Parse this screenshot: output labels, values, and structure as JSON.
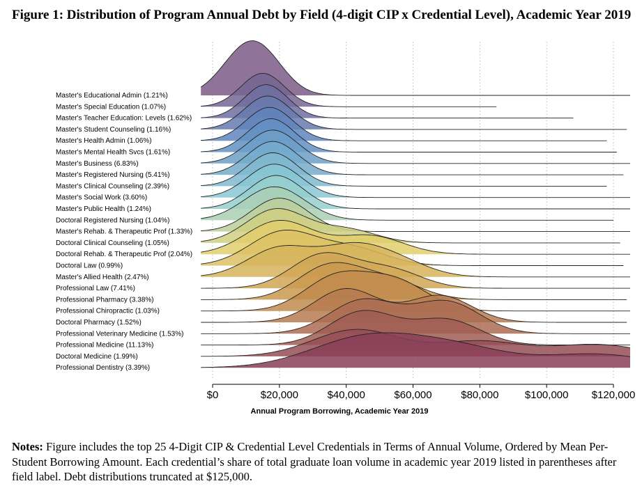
{
  "figure": {
    "title": "Figure 1: Distribution of Program Annual Debt by Field (4-digit CIP x Credential Level), Academic Year 2019",
    "notes_label": "Notes:",
    "notes_text": "Figure includes the top 25 4-Digit CIP & Credential Level Credentials in Terms of Annual Volume, Ordered by Mean Per-Student Borrowing Amount. Each credential’s share of total graduate loan volume in academic year 2019 listed in parentheses after field label. Debt distributions truncated at $125,000."
  },
  "chart_data": {
    "type": "area",
    "subtype": "ridgeline density",
    "xlabel": "Annual Program Borrowing, Academic Year 2019",
    "xlim": [
      0,
      125000
    ],
    "x_ticks": [
      0,
      20000,
      40000,
      60000,
      80000,
      100000,
      120000
    ],
    "x_tick_labels": [
      "$0",
      "$20,000",
      "$40,000",
      "$60,000",
      "$80,000",
      "$100,000",
      "$120,000"
    ],
    "grid": "vertical dotted lines at x ticks",
    "colors": {
      "top": "#7d5a86",
      "mid_blue": "#5d88c0",
      "mid_teal": "#8fcfd6",
      "mid_yellow": "#e2cf6c",
      "mid_orange": "#c9964d",
      "bottom": "#8a3f58"
    },
    "series": [
      {
        "name": "Master's Educational Admin (1.21%)",
        "peaks": [
          [
            15000,
            1.0
          ],
          [
            8000,
            0.85
          ]
        ],
        "sd": 7000,
        "max_x": 125000
      },
      {
        "name": "Master's Special Education (1.07%)",
        "peaks": [
          [
            15000,
            1.0
          ]
        ],
        "sd": 6500,
        "max_x": 85000
      },
      {
        "name": "Master's Teacher Education: Levels (1.62%)",
        "peaks": [
          [
            16000,
            1.0
          ]
        ],
        "sd": 6500,
        "max_x": 108000
      },
      {
        "name": "Master's Student Counseling (1.16%)",
        "peaks": [
          [
            16500,
            1.0
          ]
        ],
        "sd": 7000,
        "max_x": 124000
      },
      {
        "name": "Master's Health Admin (1.06%)",
        "peaks": [
          [
            17000,
            1.0
          ]
        ],
        "sd": 7000,
        "max_x": 118000
      },
      {
        "name": "Master's Mental Health Svcs (1.61%)",
        "peaks": [
          [
            17500,
            1.0
          ]
        ],
        "sd": 7000,
        "max_x": 121000
      },
      {
        "name": "Master's Business (6.83%)",
        "peaks": [
          [
            18000,
            1.0
          ]
        ],
        "sd": 7500,
        "max_x": 125000
      },
      {
        "name": "Master's Registered Nursing (5.41%)",
        "peaks": [
          [
            18000,
            1.0
          ]
        ],
        "sd": 7500,
        "max_x": 123000
      },
      {
        "name": "Master's Clinical Counseling (2.39%)",
        "peaks": [
          [
            18000,
            1.0
          ]
        ],
        "sd": 7500,
        "max_x": 118000
      },
      {
        "name": "Master's Social Work (3.60%)",
        "peaks": [
          [
            18500,
            1.0
          ]
        ],
        "sd": 8000,
        "max_x": 125000
      },
      {
        "name": "Master's Public Health (1.24%)",
        "peaks": [
          [
            19000,
            1.0
          ]
        ],
        "sd": 8000,
        "max_x": 125000
      },
      {
        "name": "Doctoral Registered Nursing (1.04%)",
        "peaks": [
          [
            18500,
            1.0
          ]
        ],
        "sd": 9000,
        "max_x": 120000
      },
      {
        "name": "Master's Rehab. & Therapeutic Prof (1.33%)",
        "peaks": [
          [
            20000,
            1.0
          ]
        ],
        "sd": 8500,
        "max_x": 125000
      },
      {
        "name": "Doctoral Clinical Counseling (1.05%)",
        "peaks": [
          [
            19000,
            1.0
          ],
          [
            40000,
            0.4
          ]
        ],
        "sd": 9000,
        "max_x": 122000
      },
      {
        "name": "Doctoral Rehab. & Therapeutic Prof (2.04%)",
        "peaks": [
          [
            20000,
            1.0
          ],
          [
            47000,
            0.55
          ]
        ],
        "sd": 10000,
        "max_x": 125000
      },
      {
        "name": "Doctoral Law (0.99%)",
        "peaks": [
          [
            21000,
            1.0
          ],
          [
            42000,
            0.5
          ]
        ],
        "sd": 10000,
        "max_x": 123000
      },
      {
        "name": "Master's Allied Health (2.47%)",
        "peaks": [
          [
            20000,
            0.85
          ],
          [
            41000,
            0.8
          ],
          [
            55000,
            0.45
          ]
        ],
        "sd": 9500,
        "max_x": 125000
      },
      {
        "name": "Professional Law (7.41%)",
        "peaks": [
          [
            33000,
            1.0
          ],
          [
            53000,
            0.55
          ]
        ],
        "sd": 9500,
        "max_x": 125000
      },
      {
        "name": "Professional Pharmacy (3.38%)",
        "peaks": [
          [
            35000,
            1.0
          ],
          [
            53000,
            0.55
          ]
        ],
        "sd": 9500,
        "max_x": 124000
      },
      {
        "name": "Professional Chiropractic (1.03%)",
        "peaks": [
          [
            37000,
            1.0
          ],
          [
            55000,
            0.85
          ]
        ],
        "sd": 9500,
        "max_x": 125000
      },
      {
        "name": "Doctoral Pharmacy (1.52%)",
        "peaks": [
          [
            40000,
            1.0
          ],
          [
            68000,
            0.8
          ]
        ],
        "sd": 9500,
        "max_x": 124000
      },
      {
        "name": "Professional Veterinary Medicine (1.53%)",
        "peaks": [
          [
            45000,
            1.0
          ],
          [
            70000,
            0.95
          ]
        ],
        "sd": 10000,
        "max_x": 125000
      },
      {
        "name": "Professional Medicine (11.13%)",
        "peaks": [
          [
            45000,
            1.0
          ],
          [
            70000,
            0.75
          ]
        ],
        "sd": 10000,
        "max_x": 125000
      },
      {
        "name": "Doctoral Medicine (1.99%)",
        "peaks": [
          [
            43000,
            0.8
          ],
          [
            80000,
            0.45
          ],
          [
            115000,
            0.35
          ]
        ],
        "sd": 13000,
        "max_x": 125000
      },
      {
        "name": "Professional Dentistry (3.39%)",
        "peaks": [
          [
            45000,
            0.85
          ],
          [
            72000,
            0.6
          ],
          [
            115000,
            0.4
          ]
        ],
        "sd": 16000,
        "max_x": 125000
      }
    ]
  }
}
